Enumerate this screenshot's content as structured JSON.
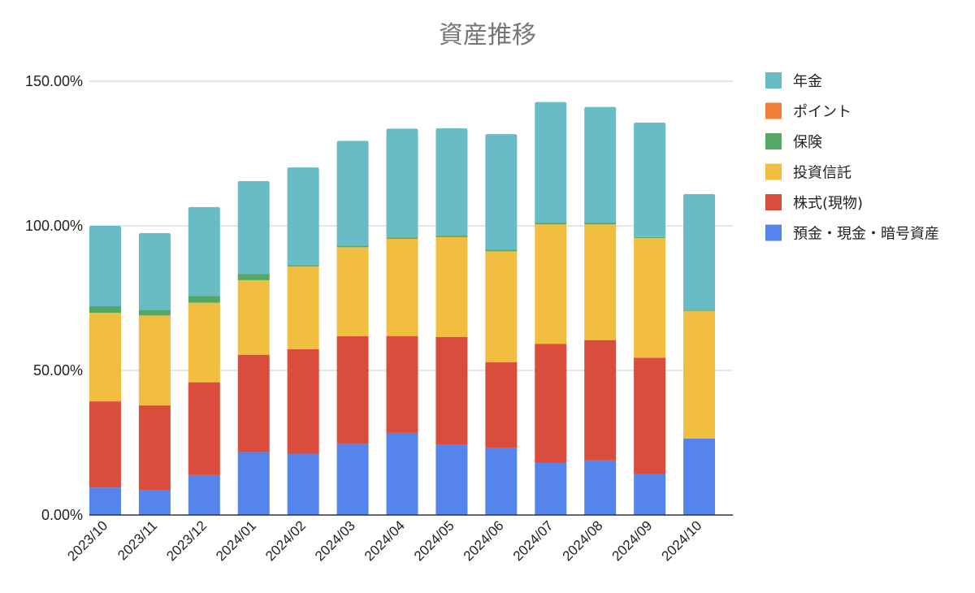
{
  "chart_data": {
    "type": "bar",
    "stacked": true,
    "title": "資産推移",
    "xlabel": "",
    "ylabel": "",
    "ylim": [
      0,
      150
    ],
    "y_ticks": [
      {
        "value": 0,
        "label": "0.00%"
      },
      {
        "value": 50,
        "label": "50.00%"
      },
      {
        "value": 100,
        "label": "100.00%"
      },
      {
        "value": 150,
        "label": "150.00%"
      }
    ],
    "grid": true,
    "legend_position": "right",
    "categories": [
      "2023/10",
      "2023/11",
      "2023/12",
      "2024/01",
      "2024/02",
      "2024/03",
      "2024/04",
      "2024/05",
      "2024/06",
      "2024/07",
      "2024/08",
      "2024/09",
      "2024/10"
    ],
    "series": [
      {
        "name": "預金・現金・暗号資産",
        "color": "#5584ec",
        "values": [
          9.5,
          8.5,
          13.8,
          21.8,
          21.2,
          24.6,
          28.4,
          24.2,
          23.2,
          18.0,
          18.9,
          14.2,
          26.4
        ]
      },
      {
        "name": "株式(現物)",
        "color": "#da4c3b",
        "values": [
          29.8,
          29.4,
          32.1,
          33.6,
          36.1,
          37.2,
          33.5,
          37.4,
          29.6,
          41.2,
          41.6,
          40.2,
          0.0
        ]
      },
      {
        "name": "投資信託",
        "color": "#f2be3f",
        "values": [
          30.6,
          31.1,
          27.5,
          25.8,
          28.6,
          30.8,
          33.6,
          34.5,
          38.4,
          41.3,
          40.0,
          41.4,
          44.2
        ]
      },
      {
        "name": "保険",
        "color": "#55a862",
        "values": [
          2.3,
          2.0,
          2.3,
          2.2,
          0.5,
          0.5,
          0.5,
          0.5,
          0.5,
          0.5,
          0.5,
          0.3,
          0.3
        ]
      },
      {
        "name": "ポイント",
        "color": "#f07f35",
        "values": [
          0,
          0,
          0,
          0,
          0,
          0,
          0,
          0,
          0,
          0,
          0,
          0,
          0
        ]
      },
      {
        "name": "年金",
        "color": "#67bcc5",
        "values": [
          27.8,
          26.5,
          30.8,
          32.1,
          33.8,
          36.3,
          37.6,
          37.1,
          40.0,
          41.8,
          40.1,
          39.6,
          40.1
        ]
      }
    ],
    "legend_order": [
      "年金",
      "ポイント",
      "保険",
      "投資信託",
      "株式(現物)",
      "預金・現金・暗号資産"
    ]
  }
}
